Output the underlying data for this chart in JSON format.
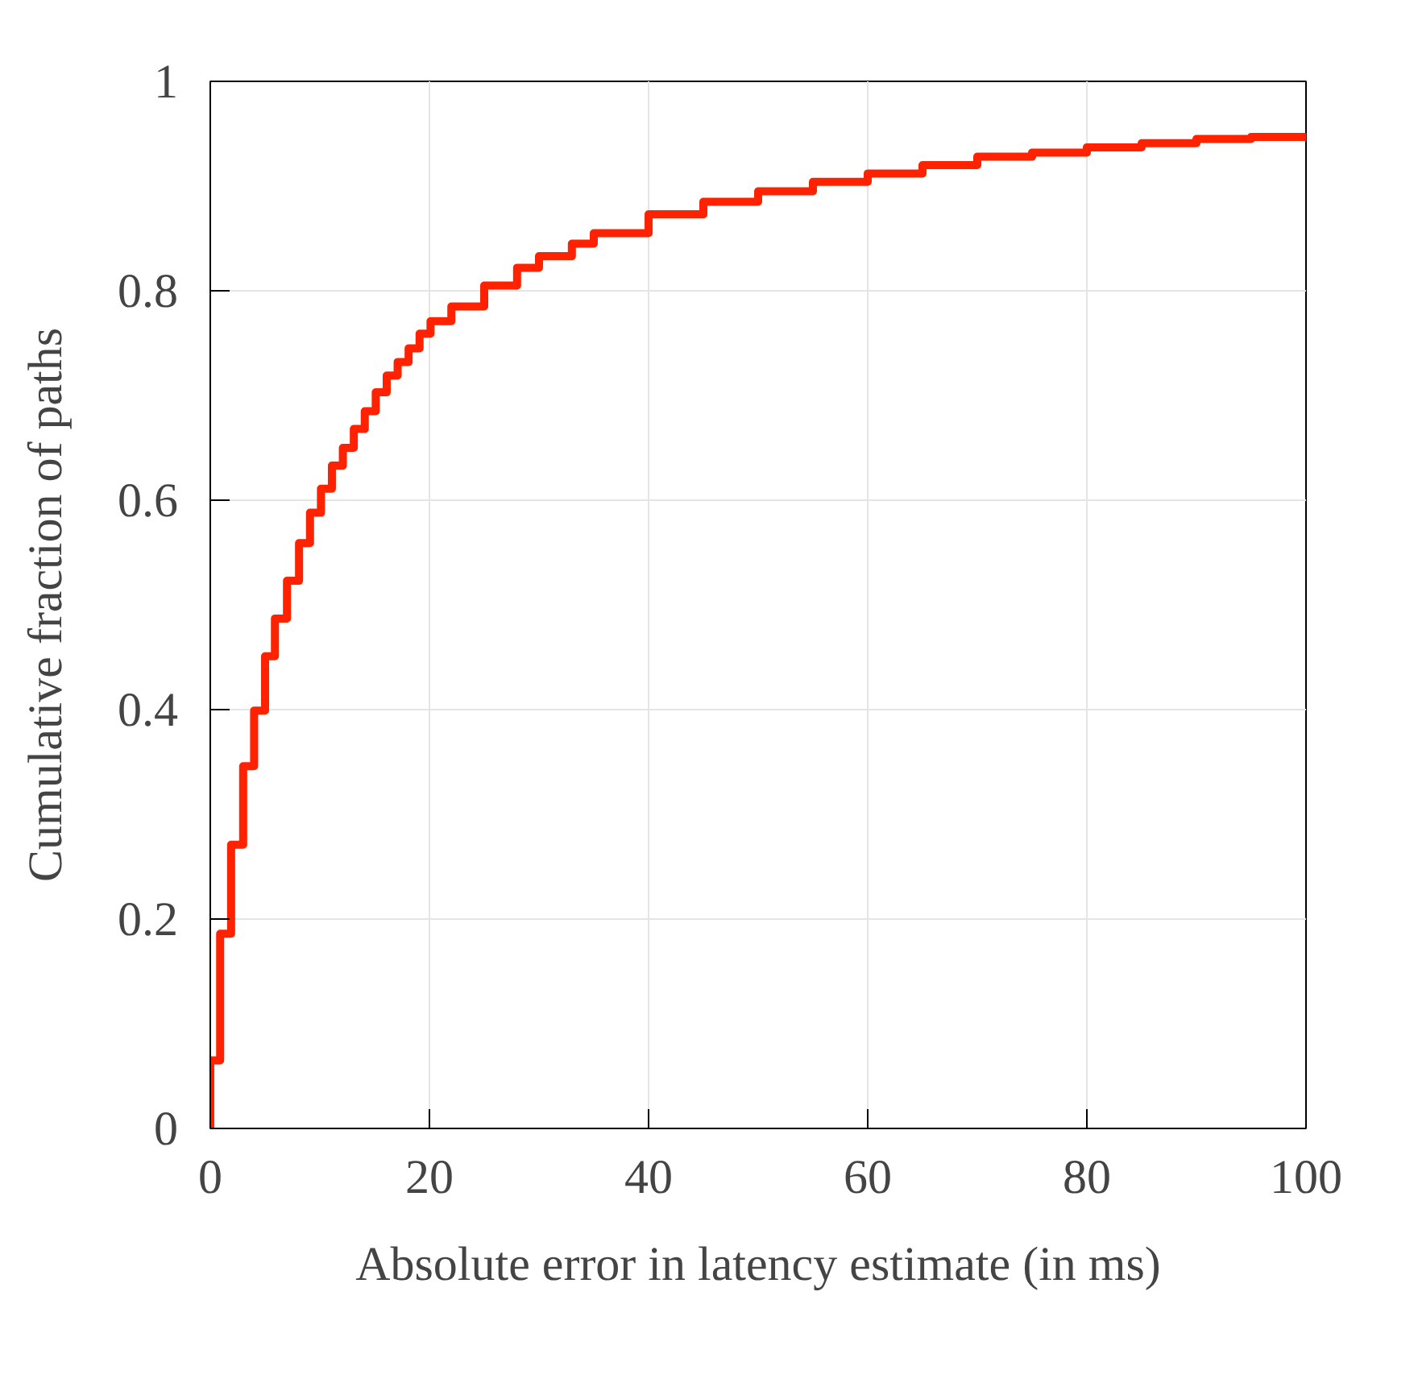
{
  "chart_data": {
    "type": "step",
    "xlabel": "Absolute error in latency estimate (in ms)",
    "ylabel": "Cumulative fraction of paths",
    "xlim": [
      0,
      100
    ],
    "ylim": [
      0,
      1
    ],
    "xticks": [
      0,
      20,
      40,
      60,
      80,
      100
    ],
    "yticks": [
      0,
      0.2,
      0.4,
      0.6,
      0.8,
      1
    ],
    "grid": true,
    "series": [
      {
        "color": "#ff2200",
        "x": [
          0,
          0,
          0.9,
          1.9,
          3.0,
          4.0,
          5.0,
          5.9,
          7.0,
          8.1,
          9.1,
          10.1,
          11.1,
          12.1,
          13.1,
          14.1,
          15.1,
          16.1,
          17.1,
          18.1,
          19.1,
          20.1,
          22,
          25,
          28,
          30,
          33,
          35,
          40,
          45,
          50,
          55,
          60,
          65,
          70,
          75,
          80,
          85,
          90,
          95,
          100
        ],
        "values": [
          0,
          0.065,
          0.186,
          0.271,
          0.346,
          0.399,
          0.451,
          0.487,
          0.523,
          0.559,
          0.588,
          0.611,
          0.633,
          0.65,
          0.668,
          0.685,
          0.703,
          0.719,
          0.732,
          0.745,
          0.759,
          0.771,
          0.785,
          0.805,
          0.822,
          0.833,
          0.845,
          0.855,
          0.873,
          0.885,
          0.895,
          0.904,
          0.912,
          0.92,
          0.928,
          0.932,
          0.937,
          0.941,
          0.945,
          0.947,
          0.949
        ]
      }
    ]
  }
}
